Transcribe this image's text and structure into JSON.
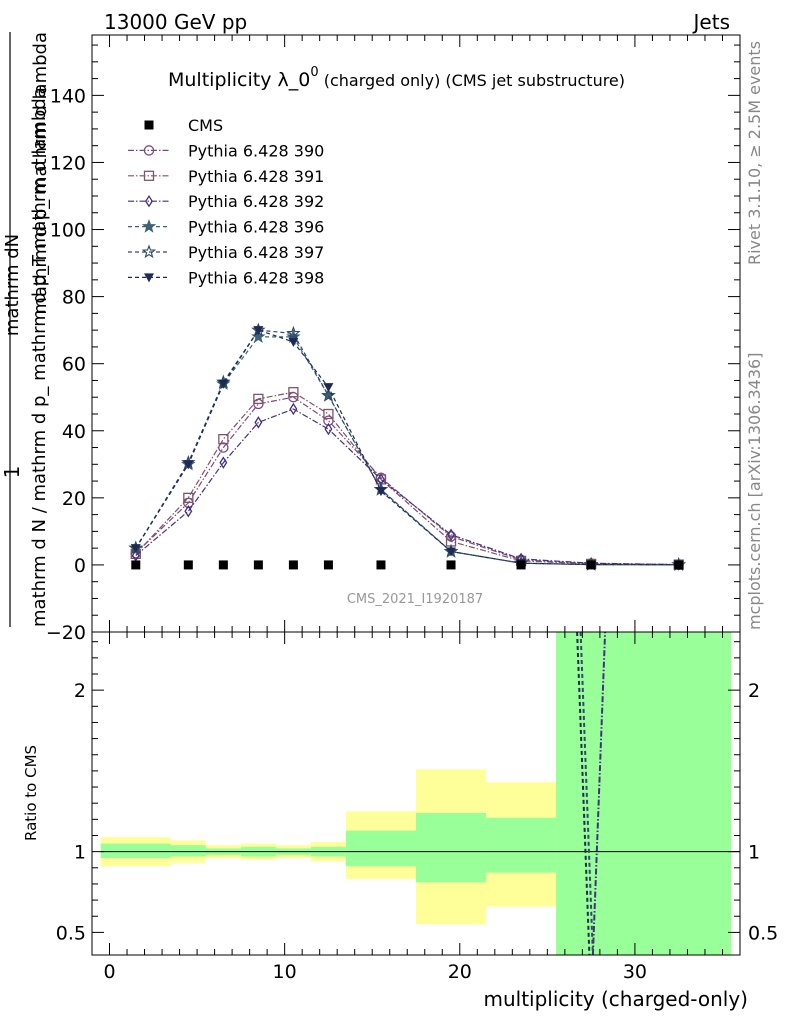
{
  "header": {
    "left": "13000 GeV pp",
    "right": "Jets"
  },
  "title_main": "Multiplicity λ_0",
  "title_sup": "0",
  "title_note": " (charged only) (CMS jet substructure)",
  "side_rivet": "Rivet 3.1.10, ≥ 2.5M events",
  "side_mcplots": "mcplots.cern.ch [arXiv:1306.3436]",
  "watermark": "CMS_2021_I1920187",
  "ylabel_parts": {
    "one": "1",
    "num": "mathrm dN",
    "den1": "mathrm d p_ mathrm d lambda",
    "den2": "mathrm d N / mathrm d p_ mathrm d p_T mathrm d lambda",
    "sub": "T"
  },
  "ratio_ylabel": "Ratio to CMS",
  "xlabel": "multiplicity (charged-only)",
  "chart_data": {
    "type": "scatter",
    "xlim": [
      -1,
      36
    ],
    "main_ylim": [
      -20,
      158
    ],
    "main_yticks": [
      -20,
      0,
      20,
      40,
      60,
      80,
      100,
      120,
      140
    ],
    "ratio_ylim": [
      0.36,
      2.36
    ],
    "ratio_yticks": [
      0.5,
      1,
      2
    ],
    "xticks": [
      0,
      10,
      20,
      30
    ],
    "legend": "top-left",
    "data": {
      "name": "CMS",
      "x": [
        1.5,
        4.5,
        6.5,
        8.5,
        10.5,
        12.5,
        15.5,
        19.5,
        23.5,
        27.5,
        32.5
      ],
      "y": [
        0,
        0,
        0,
        0,
        0,
        0,
        0,
        0,
        0,
        0,
        0
      ]
    },
    "series": [
      {
        "name": "Pythia 6.428 390",
        "color": "#7a4a7f",
        "marker": "circle",
        "dash": "6,2,1.5,2",
        "x": [
          1.5,
          4.5,
          6.5,
          8.5,
          10.5,
          12.5,
          15.5,
          19.5,
          23.5,
          27.5,
          32.5
        ],
        "y": [
          3.5,
          18.5,
          35,
          48,
          50,
          43,
          26,
          8.5,
          1.5,
          0.4,
          0.1
        ]
      },
      {
        "name": "Pythia 6.428 391",
        "color": "#7d5468",
        "marker": "square",
        "dash": "6,2,1.5,2",
        "x": [
          1.5,
          4.5,
          6.5,
          8.5,
          10.5,
          12.5,
          15.5,
          19.5,
          23.5,
          27.5,
          32.5
        ],
        "y": [
          3.3,
          20,
          37.5,
          49.5,
          51.5,
          45,
          25.5,
          7,
          1.2,
          0.3,
          0.1
        ]
      },
      {
        "name": "Pythia 6.428 392",
        "color": "#452f80",
        "marker": "diamond",
        "dash": "6,2,1.5,2",
        "x": [
          1.5,
          4.5,
          6.5,
          8.5,
          10.5,
          12.5,
          15.5,
          19.5,
          23.5,
          27.5,
          32.5
        ],
        "y": [
          2.8,
          16,
          30.5,
          42.5,
          46.5,
          40.5,
          25.5,
          9,
          1.8,
          0.5,
          0.1
        ]
      },
      {
        "name": "Pythia 6.428 396",
        "color": "#3c6478",
        "marker": "star-filled",
        "dash": "4,3",
        "x": [
          1.5,
          4.5,
          6.5,
          8.5,
          10.5,
          12.5,
          15.5,
          19.5,
          23.5,
          27.5,
          32.5
        ],
        "y": [
          5,
          30,
          54,
          68,
          68,
          50.5,
          22.5,
          4,
          0.5,
          0.1,
          0.05
        ]
      },
      {
        "name": "Pythia 6.428 397",
        "color": "#2f4a66",
        "marker": "star-open",
        "dash": "4,3",
        "x": [
          1.5,
          4.5,
          6.5,
          8.5,
          10.5,
          12.5,
          15.5,
          19.5,
          23.5,
          27.5,
          32.5
        ],
        "y": [
          5,
          30.5,
          54.5,
          70,
          69,
          50.5,
          22.5,
          4,
          0.5,
          0.1,
          0.05
        ]
      },
      {
        "name": "Pythia 6.428 398",
        "color": "#1e2a55",
        "marker": "triangle-down",
        "dash": "4,3",
        "x": [
          1.5,
          4.5,
          6.5,
          8.5,
          10.5,
          12.5,
          15.5,
          19.5,
          23.5,
          27.5,
          32.5
        ],
        "y": [
          5,
          30,
          54,
          70,
          66.5,
          53,
          22,
          4,
          0.5,
          0.1,
          0.05
        ]
      }
    ],
    "ratio_bands": [
      {
        "x0": -0.5,
        "x1": 3.5,
        "yellow": [
          0.91,
          1.09
        ],
        "green": [
          0.96,
          1.05
        ]
      },
      {
        "x0": 3.5,
        "x1": 5.5,
        "yellow": [
          0.93,
          1.07
        ],
        "green": [
          0.97,
          1.04
        ]
      },
      {
        "x0": 5.5,
        "x1": 7.5,
        "yellow": [
          0.96,
          1.04
        ],
        "green": [
          0.98,
          1.02
        ]
      },
      {
        "x0": 7.5,
        "x1": 9.5,
        "yellow": [
          0.95,
          1.05
        ],
        "green": [
          0.97,
          1.03
        ]
      },
      {
        "x0": 9.5,
        "x1": 11.5,
        "yellow": [
          0.96,
          1.04
        ],
        "green": [
          0.98,
          1.02
        ]
      },
      {
        "x0": 11.5,
        "x1": 13.5,
        "yellow": [
          0.94,
          1.06
        ],
        "green": [
          0.97,
          1.03
        ]
      },
      {
        "x0": 13.5,
        "x1": 17.5,
        "yellow": [
          0.83,
          1.25
        ],
        "green": [
          0.91,
          1.13
        ]
      },
      {
        "x0": 17.5,
        "x1": 21.5,
        "yellow": [
          0.55,
          1.51
        ],
        "green": [
          0.81,
          1.24
        ]
      },
      {
        "x0": 21.5,
        "x1": 25.5,
        "yellow": [
          0.66,
          1.43
        ],
        "green": [
          0.87,
          1.21
        ]
      },
      {
        "x0": 25.5,
        "x1": 35.5,
        "yellow": [
          0.36,
          2.36
        ],
        "green": [
          0.36,
          2.36
        ]
      }
    ],
    "ratio_lines": [
      {
        "color": "#452f80",
        "dash": "6,2,1.5,2",
        "pts": [
          [
            27.6,
            0.36
          ],
          [
            28.3,
            2.36
          ]
        ]
      },
      {
        "color": "#1e2a55",
        "dash": "4,3",
        "pts": [
          [
            26.7,
            2.36
          ],
          [
            27.4,
            0.36
          ]
        ]
      },
      {
        "color": "#2f4a66",
        "dash": "4,3",
        "pts": [
          [
            26.9,
            2.36
          ],
          [
            27.6,
            0.36
          ]
        ]
      }
    ]
  }
}
